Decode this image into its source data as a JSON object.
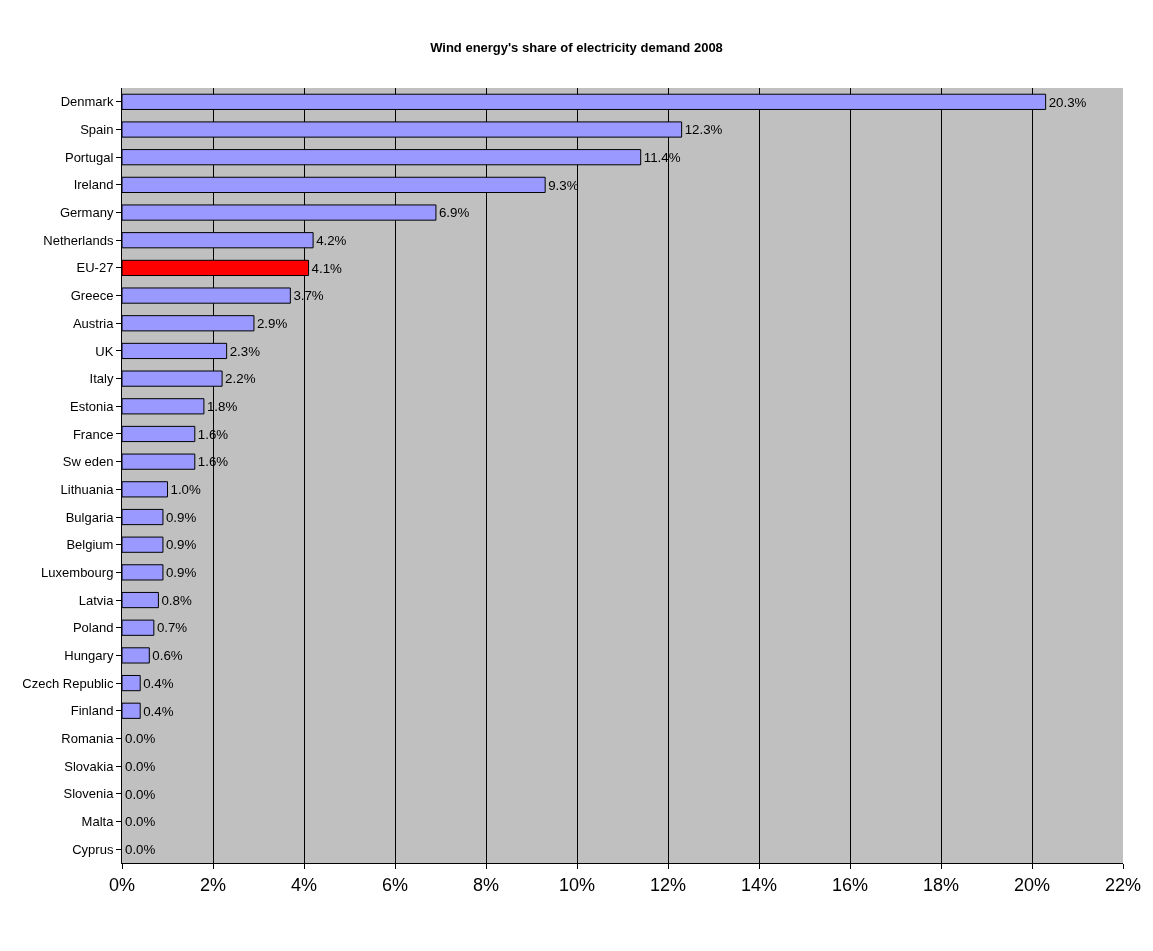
{
  "chart_data": {
    "type": "bar",
    "orientation": "horizontal",
    "title": "Wind energy's share of electricity demand 2008",
    "categories": [
      "Denmark",
      "Spain",
      "Portugal",
      "Ireland",
      "Germany",
      "Netherlands",
      "EU-27",
      "Greece",
      "Austria",
      "UK",
      "Italy",
      "Estonia",
      "France",
      "Sw eden",
      "Lithuania",
      "Bulgaria",
      "Belgium",
      "Luxembourg",
      "Latvia",
      "Poland",
      "Hungary",
      "Czech Republic",
      "Finland",
      "Romania",
      "Slovakia",
      "Slovenia",
      "Malta",
      "Cyprus"
    ],
    "values": [
      20.3,
      12.3,
      11.4,
      9.3,
      6.9,
      4.2,
      4.1,
      3.7,
      2.9,
      2.3,
      2.2,
      1.8,
      1.6,
      1.6,
      1.0,
      0.9,
      0.9,
      0.9,
      0.8,
      0.7,
      0.6,
      0.4,
      0.4,
      0.0,
      0.0,
      0.0,
      0.0,
      0.0
    ],
    "value_labels": [
      "20.3%",
      "12.3%",
      "11.4%",
      "9.3%",
      "6.9%",
      "4.2%",
      "4.1%",
      "3.7%",
      "2.9%",
      "2.3%",
      "2.2%",
      "1.8%",
      "1.6%",
      "1.6%",
      "1.0%",
      "0.9%",
      "0.9%",
      "0.9%",
      "0.8%",
      "0.7%",
      "0.6%",
      "0.4%",
      "0.4%",
      "0.0%",
      "0.0%",
      "0.0%",
      "0.0%",
      "0.0%"
    ],
    "colors": [
      "#9999ff",
      "#9999ff",
      "#9999ff",
      "#9999ff",
      "#9999ff",
      "#9999ff",
      "#ff0000",
      "#9999ff",
      "#9999ff",
      "#9999ff",
      "#9999ff",
      "#9999ff",
      "#9999ff",
      "#9999ff",
      "#9999ff",
      "#9999ff",
      "#9999ff",
      "#9999ff",
      "#9999ff",
      "#9999ff",
      "#9999ff",
      "#9999ff",
      "#9999ff",
      "#9999ff",
      "#9999ff",
      "#9999ff",
      "#9999ff",
      "#9999ff"
    ],
    "xlim": [
      0,
      22
    ],
    "xticks": [
      {
        "value": 0,
        "label": "0%"
      },
      {
        "value": 2,
        "label": "2%"
      },
      {
        "value": 4,
        "label": "4%"
      },
      {
        "value": 6,
        "label": "6%"
      },
      {
        "value": 8,
        "label": "8%"
      },
      {
        "value": 10,
        "label": "10%"
      },
      {
        "value": 12,
        "label": "12%"
      },
      {
        "value": 14,
        "label": "14%"
      },
      {
        "value": 16,
        "label": "16%"
      },
      {
        "value": 18,
        "label": "18%"
      },
      {
        "value": 20,
        "label": "20%"
      },
      {
        "value": 22,
        "label": "22%"
      }
    ],
    "grid": "x",
    "legend": false
  }
}
